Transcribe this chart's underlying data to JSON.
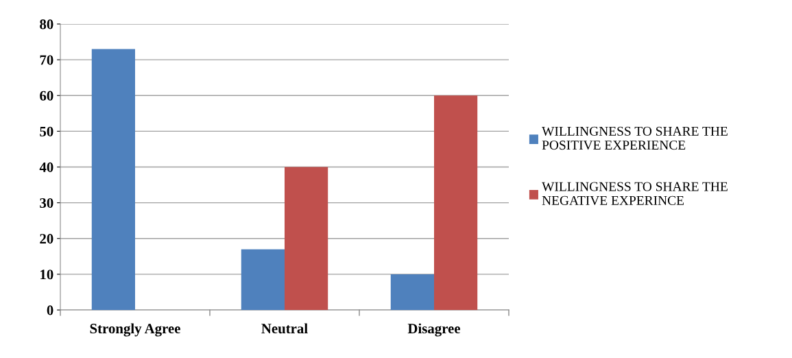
{
  "chart_data": {
    "type": "bar",
    "categories": [
      "Strongly Agree",
      "Neutral",
      "Disagree"
    ],
    "series": [
      {
        "name": "WILLINGNESS TO SHARE THE\nPOSITIVE EXPERIENCE",
        "color": "#4f81bd",
        "values": [
          73,
          17,
          10
        ]
      },
      {
        "name": "WILLINGNESS TO SHARE THE\nNEGATIVE EXPERINCE",
        "color": "#c0504d",
        "values": [
          0,
          40,
          60
        ]
      }
    ],
    "ylim": [
      0,
      80
    ],
    "yticks": [
      0,
      10,
      20,
      30,
      40,
      50,
      60,
      70,
      80
    ],
    "grid": "y",
    "legend": "right"
  }
}
